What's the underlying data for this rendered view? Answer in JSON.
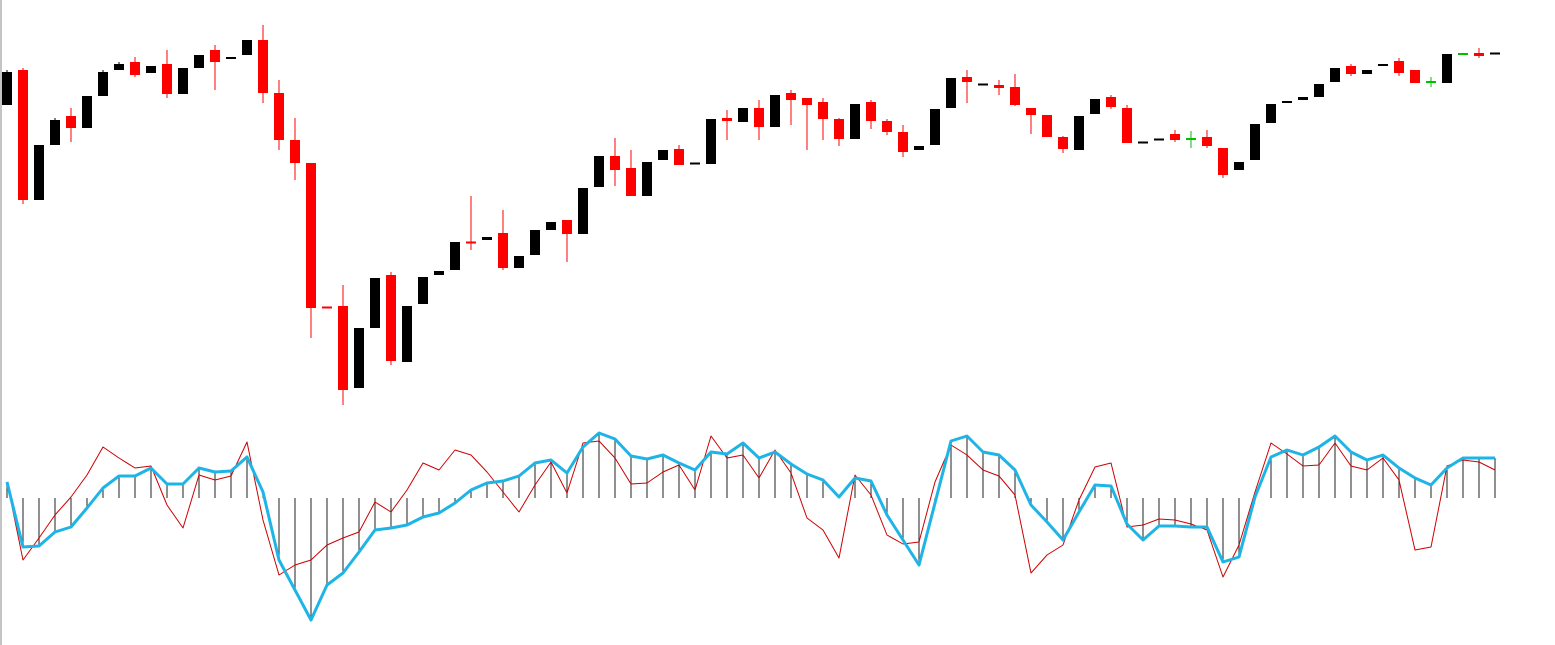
{
  "chart_data": [
    {
      "type": "candlestick",
      "up_color": "#000000",
      "down_color": "#ff0000",
      "doji_color": "#00c000",
      "ylim": [
        20,
        400
      ],
      "open": [
        315,
        350,
        220,
        275,
        304,
        292,
        324,
        350,
        358,
        347,
        356,
        326,
        352,
        370,
        361,
        365,
        380,
        327,
        280,
        257,
        113,
        114,
        32,
        92,
        145,
        58,
        116,
        145,
        150,
        178,
        180,
        187,
        152,
        165,
        190,
        200,
        186,
        233,
        264,
        252,
        224,
        260,
        271,
        256,
        256,
        302,
        298,
        312,
        293,
        327,
        322,
        318,
        301,
        281,
        318,
        299,
        288,
        270,
        275,
        312,
        343,
        335,
        335,
        333,
        312,
        305,
        283,
        270,
        306,
        323,
        312,
        277,
        280,
        286,
        281,
        283,
        272,
        250,
        260,
        297,
        317,
        320,
        323,
        338,
        354,
        346,
        354,
        359,
        350,
        338,
        337,
        366,
        367,
        366
      ],
      "high": [
        350,
        352,
        275,
        302,
        312,
        324,
        350,
        358,
        363,
        354,
        370,
        352,
        365,
        375,
        363,
        380,
        395,
        340,
        302,
        257,
        113,
        135,
        92,
        142,
        148,
        114,
        143,
        149,
        178,
        224,
        183,
        210,
        164,
        190,
        198,
        200,
        232,
        264,
        282,
        270,
        258,
        270,
        275,
        257,
        301,
        310,
        312,
        320,
        325,
        330,
        322,
        322,
        302,
        316,
        320,
        301,
        295,
        274,
        311,
        342,
        350,
        336,
        340,
        346,
        312,
        305,
        284,
        304,
        321,
        325,
        315,
        278,
        281,
        290,
        289,
        290,
        272,
        258,
        296,
        316,
        319,
        323,
        336,
        352,
        356,
        350,
        356,
        362,
        350,
        343,
        366,
        366,
        372,
        367
      ],
      "low": [
        315,
        216,
        220,
        275,
        278,
        292,
        324,
        350,
        343,
        347,
        322,
        326,
        352,
        330,
        361,
        365,
        317,
        270,
        240,
        82,
        112,
        15,
        32,
        92,
        55,
        58,
        116,
        145,
        150,
        170,
        180,
        150,
        152,
        165,
        190,
        158,
        186,
        233,
        234,
        224,
        224,
        260,
        255,
        256,
        256,
        280,
        298,
        280,
        293,
        295,
        270,
        280,
        274,
        281,
        291,
        285,
        263,
        270,
        275,
        312,
        317,
        335,
        325,
        314,
        286,
        283,
        267,
        270,
        306,
        311,
        277,
        277,
        280,
        278,
        272,
        272,
        242,
        250,
        260,
        297,
        317,
        320,
        323,
        338,
        344,
        346,
        354,
        344,
        337,
        333,
        337,
        366,
        362,
        366
      ],
      "close": [
        348,
        220,
        275,
        300,
        292,
        324,
        348,
        356,
        345,
        354,
        326,
        352,
        365,
        358,
        363,
        380,
        327,
        280,
        257,
        112,
        112,
        30,
        92,
        142,
        59,
        114,
        143,
        149,
        178,
        177,
        183,
        152,
        164,
        190,
        198,
        186,
        232,
        264,
        250,
        224,
        258,
        270,
        255,
        257,
        301,
        299,
        312,
        293,
        325,
        320,
        315,
        301,
        281,
        316,
        299,
        288,
        268,
        274,
        311,
        342,
        338,
        336,
        332,
        315,
        305,
        283,
        271,
        304,
        321,
        313,
        277,
        278,
        281,
        280,
        281,
        274,
        245,
        258,
        296,
        316,
        319,
        323,
        336,
        352,
        346,
        350,
        356,
        347,
        337,
        338,
        366,
        366,
        364,
        367
      ]
    },
    {
      "type": "line",
      "ylim": [
        -132,
        78
      ],
      "histogram": {
        "series": 0,
        "color": "#555555"
      },
      "series": [
        {
          "color": "#1eb4e6",
          "width": 3,
          "values": [
            16,
            -49,
            -48,
            -34,
            -29,
            -10,
            10,
            22,
            22,
            30,
            14,
            14,
            30,
            26,
            27,
            41,
            6,
            -62,
            -92,
            -122,
            -87,
            -75,
            -54,
            -32,
            -30,
            -27,
            -19,
            -15,
            -5,
            8,
            15,
            17,
            22,
            35,
            38,
            25,
            51,
            65,
            59,
            42,
            39,
            43,
            35,
            28,
            46,
            44,
            55,
            40,
            46,
            34,
            24,
            18,
            1,
            20,
            17,
            -17,
            -42,
            -67,
            -5,
            57,
            62,
            46,
            43,
            28,
            -7,
            -24,
            -42,
            -14,
            13,
            12,
            -26,
            -42,
            -28,
            -28,
            -29,
            -29,
            -64,
            -59,
            1,
            41,
            48,
            43,
            51,
            62,
            46,
            38,
            43,
            30,
            20,
            13,
            30,
            40,
            40,
            40
          ]
        },
        {
          "color": "#cc0000",
          "width": 1,
          "values": [
            16,
            -62,
            -40,
            -17,
            1,
            23,
            51,
            40,
            30,
            32,
            -7,
            -30,
            23,
            18,
            22,
            56,
            -22,
            -77,
            -67,
            -62,
            -47,
            -40,
            -34,
            -4,
            -14,
            8,
            35,
            28,
            48,
            43,
            26,
            6,
            -14,
            13,
            36,
            5,
            55,
            57,
            40,
            14,
            15,
            26,
            33,
            8,
            62,
            40,
            43,
            20,
            48,
            25,
            -20,
            -32,
            -60,
            23,
            3,
            -37,
            -46,
            -44,
            16,
            53,
            43,
            28,
            22,
            3,
            -75,
            -57,
            -47,
            -2,
            31,
            35,
            -29,
            -27,
            -21,
            -22,
            -26,
            -32,
            -79,
            -47,
            6,
            55,
            44,
            32,
            33,
            55,
            32,
            28,
            40,
            18,
            -52,
            -49,
            32,
            38,
            36,
            28
          ]
        }
      ]
    }
  ]
}
